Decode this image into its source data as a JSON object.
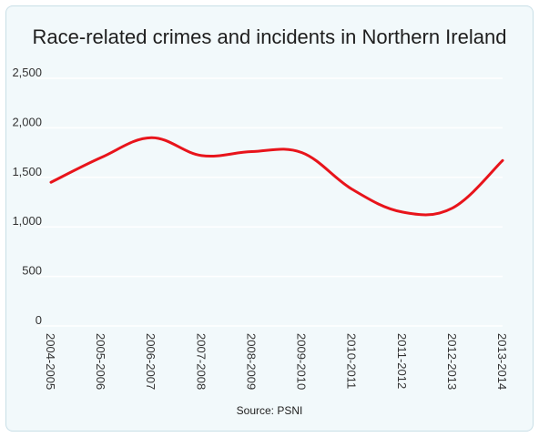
{
  "chart_data": {
    "type": "line",
    "title": "Race-related crimes and incidents in Northern Ireland",
    "source": "Source: PSNI",
    "xlabel": "",
    "ylabel": "",
    "categories": [
      "2004-2005",
      "2005-2006",
      "2006-2007",
      "2007-2008",
      "2008-2009",
      "2009-2010",
      "2010-2011",
      "2011-2012",
      "2012-2013",
      "2013-2014"
    ],
    "series": [
      {
        "values": [
          1450,
          1700,
          1900,
          1720,
          1760,
          1750,
          1380,
          1150,
          1190,
          1670
        ]
      }
    ],
    "ylim": [
      0,
      2500
    ],
    "yticks": [
      0,
      500,
      1000,
      1500,
      2000,
      2500
    ],
    "ytick_labels": [
      "0",
      "500",
      "1,000",
      "1,500",
      "2,000",
      "2,500"
    ],
    "grid": true,
    "line_color": "#e8141b",
    "grid_color": "#ffffff",
    "background_color": "#f2f9fb"
  }
}
